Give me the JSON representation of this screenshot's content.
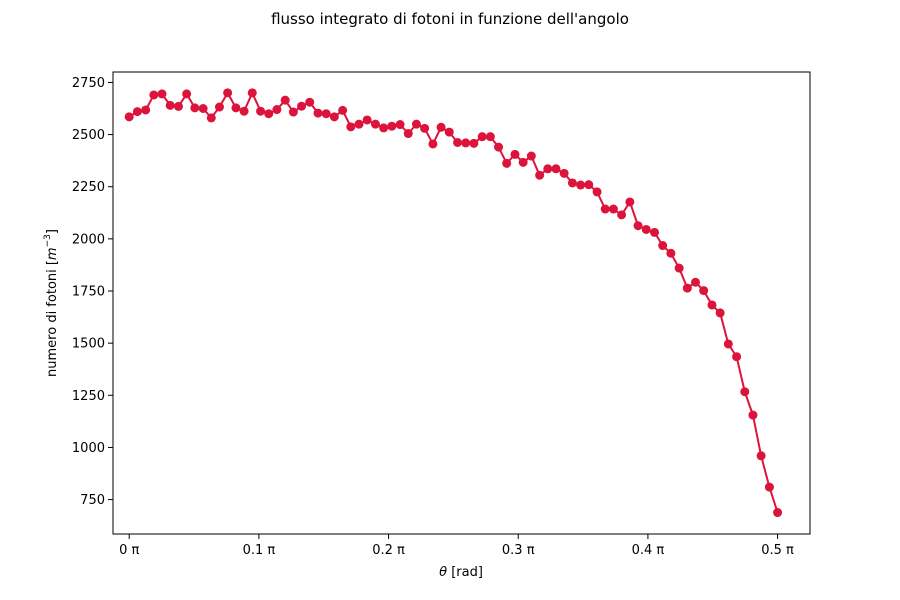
{
  "chart_data": {
    "type": "line",
    "title": "flusso integrato di fotoni in funzione dell'angolo",
    "xlabel_var": "θ",
    "xlabel_unit": " [rad]",
    "ylabel_text": "numero di fotoni [",
    "ylabel_unit_base": "m",
    "ylabel_unit_exp": "−3",
    "ylabel_close": "]",
    "xlim": [
      -0.0125,
      0.525
    ],
    "ylim": [
      585,
      2800
    ],
    "x_unit": "π",
    "x_ticks": [
      {
        "value": 0.0,
        "label": "0 π"
      },
      {
        "value": 0.1,
        "label": "0.1 π"
      },
      {
        "value": 0.2,
        "label": "0.2 π"
      },
      {
        "value": 0.3,
        "label": "0.3 π"
      },
      {
        "value": 0.4,
        "label": "0.4 π"
      },
      {
        "value": 0.5,
        "label": "0.5 π"
      }
    ],
    "y_ticks": [
      {
        "value": 750,
        "label": "750"
      },
      {
        "value": 1000,
        "label": "1000"
      },
      {
        "value": 1250,
        "label": "1250"
      },
      {
        "value": 1500,
        "label": "1500"
      },
      {
        "value": 1750,
        "label": "1750"
      },
      {
        "value": 2000,
        "label": "2000"
      },
      {
        "value": 2250,
        "label": "2250"
      },
      {
        "value": 2500,
        "label": "2500"
      },
      {
        "value": 2750,
        "label": "2750"
      }
    ],
    "grid": false,
    "legend": "none",
    "series": [
      {
        "color": "#dc143c",
        "marker": "circle",
        "x": [
          0.0,
          0.0063,
          0.0127,
          0.019,
          0.0253,
          0.0316,
          0.038,
          0.0443,
          0.0506,
          0.057,
          0.0633,
          0.0696,
          0.0759,
          0.0823,
          0.0886,
          0.0949,
          0.1013,
          0.1076,
          0.1139,
          0.1203,
          0.1266,
          0.1329,
          0.1392,
          0.1456,
          0.1519,
          0.1582,
          0.1646,
          0.1709,
          0.1772,
          0.1835,
          0.1899,
          0.1962,
          0.2025,
          0.2089,
          0.2152,
          0.2215,
          0.2278,
          0.2342,
          0.2405,
          0.2468,
          0.2532,
          0.2595,
          0.2658,
          0.2722,
          0.2785,
          0.2848,
          0.2911,
          0.2975,
          0.3038,
          0.3101,
          0.3165,
          0.3228,
          0.3291,
          0.3354,
          0.3418,
          0.3481,
          0.3544,
          0.3608,
          0.3671,
          0.3734,
          0.3797,
          0.3861,
          0.3924,
          0.3987,
          0.4051,
          0.4114,
          0.4177,
          0.4241,
          0.4304,
          0.4367,
          0.443,
          0.4494,
          0.4557,
          0.462,
          0.4684,
          0.4747,
          0.481,
          0.4873,
          0.4937,
          0.5
        ],
        "y": [
          2585,
          2610,
          2618,
          2690,
          2695,
          2640,
          2635,
          2695,
          2628,
          2625,
          2580,
          2632,
          2700,
          2628,
          2612,
          2700,
          2612,
          2600,
          2620,
          2665,
          2608,
          2636,
          2655,
          2603,
          2600,
          2585,
          2616,
          2537,
          2550,
          2570,
          2550,
          2532,
          2540,
          2548,
          2505,
          2550,
          2530,
          2455,
          2535,
          2512,
          2462,
          2460,
          2458,
          2490,
          2490,
          2440,
          2362,
          2405,
          2367,
          2397,
          2305,
          2336,
          2336,
          2314,
          2268,
          2258,
          2260,
          2225,
          2143,
          2143,
          2115,
          2177,
          2063,
          2045,
          2031,
          1968,
          1931,
          1860,
          1764,
          1792,
          1752,
          1683,
          1645,
          1496,
          1435,
          1267,
          1155,
          960,
          810,
          688
        ]
      }
    ]
  }
}
